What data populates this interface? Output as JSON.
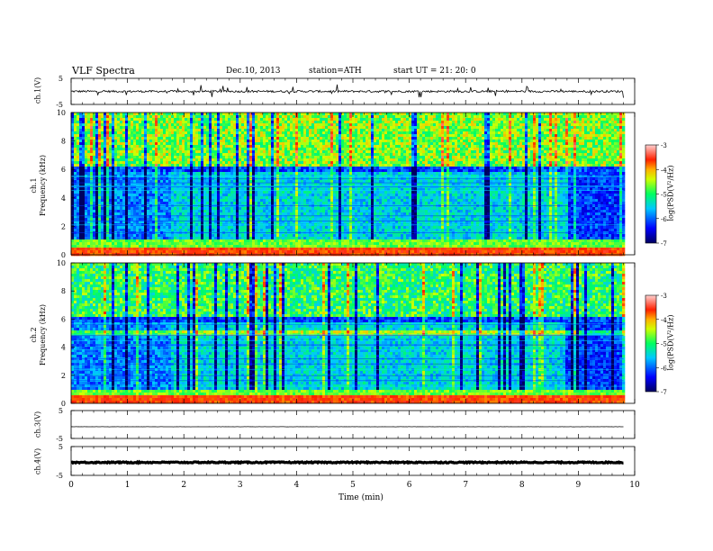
{
  "header": {
    "title": "VLF  Spectra",
    "date": "Dec.10, 2013",
    "station": "station=ATH",
    "start_ut": "start  UT  =   21: 20: 0"
  },
  "chart_data": [
    {
      "id": "ch1-waveform",
      "type": "line",
      "ylabel": "ch.1(V)",
      "ylim": [
        -5,
        5
      ],
      "yticks": [
        "5",
        "-5"
      ],
      "xlim": [
        0,
        10
      ],
      "baseline": 0,
      "noise_amplitude": 0.8,
      "spike_density": "high"
    },
    {
      "id": "ch1-spectrogram",
      "type": "heatmap",
      "ylabel": "ch.1\nFrequency (kHz)",
      "ylabel_lines": [
        "ch.1",
        "Frequency  (kHz)"
      ],
      "ylim": [
        0,
        10
      ],
      "yticks": [
        "0",
        "2",
        "4",
        "6",
        "8",
        "10"
      ],
      "xlim": [
        0,
        10
      ],
      "data_extent_min": 9.8,
      "colorbar": {
        "label": "log(PSD(V²/Hz)",
        "range": [
          -7,
          -3
        ],
        "ticks": [
          "-3",
          "-4",
          "-5",
          "-6",
          "-7"
        ]
      },
      "segments_min": [
        1.75,
        8.75
      ]
    },
    {
      "id": "ch2-spectrogram",
      "type": "heatmap",
      "ylabel_lines": [
        "ch.2",
        "Frequency  (kHz)"
      ],
      "ylim": [
        0,
        10
      ],
      "yticks": [
        "0",
        "2",
        "4",
        "6",
        "8",
        "10"
      ],
      "xlim": [
        0,
        10
      ],
      "data_extent_min": 9.8,
      "colorbar": {
        "label": "log(PSD(V²/Hz)",
        "range": [
          -7,
          -3
        ],
        "ticks": [
          "-3",
          "-4",
          "-5",
          "-6",
          "-7"
        ]
      },
      "segments_min": [
        1.75,
        8.75
      ]
    },
    {
      "id": "ch3-waveform",
      "type": "line",
      "ylabel": "ch.3(V)",
      "ylim": [
        -5,
        5
      ],
      "yticks": [
        "5",
        "-5"
      ],
      "xlim": [
        0,
        10
      ],
      "baseline": -0.8,
      "noise_amplitude": 0.05
    },
    {
      "id": "ch4-waveform",
      "type": "line",
      "ylabel": "ch.4(V)",
      "ylim": [
        -5,
        5
      ],
      "yticks": [
        "5",
        "-5"
      ],
      "xlim": [
        0,
        10
      ],
      "baseline": -0.5,
      "noise_amplitude": 0.4
    }
  ],
  "x_axis": {
    "label": "Time  (min)",
    "ticks": [
      "0",
      "1",
      "2",
      "3",
      "4",
      "5",
      "6",
      "7",
      "8",
      "9",
      "10"
    ]
  }
}
